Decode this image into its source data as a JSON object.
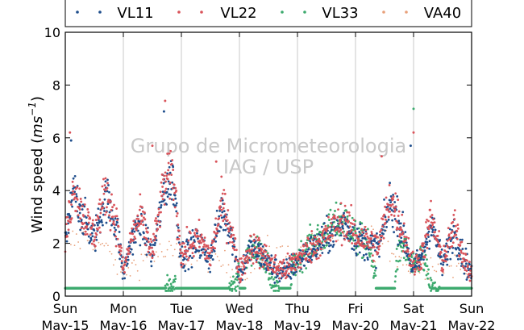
{
  "chart_data": {
    "type": "scatter",
    "title": "",
    "ylabel": "Wind speed (ms⁻¹)",
    "ylabel_main": "Wind speed (",
    "ylabel_unit": "ms",
    "ylabel_exp": "−1",
    "ylabel_close": ")",
    "ylim": [
      0,
      10
    ],
    "yticks": [
      0,
      2,
      4,
      6,
      8,
      10
    ],
    "xlim": [
      "2015-05-17",
      "2015-05-24"
    ],
    "xticks": [
      {
        "day": "Sun",
        "date": "May-15"
      },
      {
        "day": "Mon",
        "date": "May-16"
      },
      {
        "day": "Tue",
        "date": "May-17"
      },
      {
        "day": "Wed",
        "date": "May-18"
      },
      {
        "day": "Thu",
        "date": "May-19"
      },
      {
        "day": "Fri",
        "date": "May-20"
      },
      {
        "day": "Sat",
        "date": "May-21"
      },
      {
        "day": "Sun",
        "date": "May-22"
      }
    ],
    "grid": "vertical",
    "legend_position": "top",
    "watermark": [
      "Grupo de Micrometeorologia",
      "IAG / USP"
    ],
    "series": [
      {
        "name": "VL11",
        "color": "#1f4e8c",
        "marker": "dot",
        "mean_profile_x_day": [
          0.0,
          0.15,
          0.3,
          0.5,
          0.7,
          0.9,
          1.0,
          1.15,
          1.3,
          1.5,
          1.7,
          1.85,
          2.0,
          2.15,
          2.3,
          2.5,
          2.7,
          2.85,
          3.0,
          3.2,
          3.4,
          3.6,
          3.8,
          4.0,
          4.2,
          4.4,
          4.6,
          4.8,
          5.0,
          5.2,
          5.4,
          5.6,
          5.8,
          6.0,
          6.15,
          6.3,
          6.5,
          6.7,
          6.85,
          7.0
        ],
        "mean_profile_y": [
          2.0,
          4.0,
          3.0,
          2.2,
          3.8,
          2.5,
          0.8,
          2.2,
          2.8,
          1.5,
          4.0,
          4.5,
          1.5,
          1.8,
          2.0,
          1.4,
          3.3,
          2.5,
          0.8,
          1.8,
          1.5,
          1.0,
          0.9,
          1.3,
          1.7,
          2.0,
          2.4,
          2.8,
          2.2,
          2.0,
          1.8,
          3.6,
          2.5,
          1.0,
          1.5,
          2.8,
          1.2,
          2.5,
          1.5,
          0.8
        ]
      },
      {
        "name": "VL22",
        "color": "#d9535a",
        "marker": "dot",
        "mean_profile_x_day": [
          0.0,
          0.15,
          0.3,
          0.5,
          0.7,
          0.9,
          1.0,
          1.15,
          1.3,
          1.5,
          1.7,
          1.85,
          2.0,
          2.15,
          2.3,
          2.5,
          2.7,
          2.85,
          3.0,
          3.2,
          3.4,
          3.6,
          3.8,
          4.0,
          4.2,
          4.4,
          4.6,
          4.8,
          5.0,
          5.2,
          5.4,
          5.6,
          5.8,
          6.0,
          6.15,
          6.3,
          6.5,
          6.7,
          6.85,
          7.0
        ],
        "mean_profile_y": [
          2.1,
          4.2,
          3.1,
          2.3,
          4.0,
          2.6,
          0.9,
          2.3,
          3.0,
          1.6,
          4.2,
          4.7,
          1.6,
          1.9,
          2.2,
          1.5,
          3.5,
          2.6,
          0.9,
          1.9,
          1.6,
          1.1,
          1.0,
          1.4,
          1.8,
          2.1,
          2.5,
          2.9,
          2.3,
          2.1,
          1.9,
          3.8,
          2.6,
          1.1,
          1.6,
          3.0,
          1.3,
          2.6,
          1.6,
          0.9
        ]
      },
      {
        "name": "VL33",
        "color": "#3daa6e",
        "marker": "dot",
        "mean_profile_x_day": [
          0.0,
          0.15,
          0.3,
          0.5,
          0.7,
          0.9,
          1.0,
          1.15,
          1.3,
          1.5,
          1.7,
          1.85,
          2.0,
          2.15,
          2.3,
          2.5,
          2.7,
          2.85,
          3.0,
          3.2,
          3.4,
          3.6,
          3.8,
          4.0,
          4.2,
          4.4,
          4.6,
          4.8,
          5.0,
          5.2,
          5.4,
          5.6,
          5.8,
          6.0,
          6.15,
          6.3,
          6.5,
          6.7,
          6.85,
          7.0
        ],
        "mean_profile_y": [
          0.3,
          0.3,
          0.3,
          0.3,
          0.3,
          0.3,
          0.3,
          0.3,
          0.3,
          0.3,
          0.3,
          0.3,
          1.5,
          1.8,
          1.9,
          0.3,
          0.3,
          0.3,
          0.8,
          1.8,
          1.6,
          0.3,
          0.3,
          1.4,
          1.9,
          2.2,
          2.6,
          3.0,
          2.2,
          2.0,
          0.3,
          0.3,
          2.0,
          1.0,
          1.6,
          0.3,
          0.3,
          0.3,
          0.3,
          0.3
        ]
      },
      {
        "name": "VA40",
        "color": "#e8a07a",
        "marker": "dot",
        "mean_profile_x_day": [
          0.0,
          0.5,
          1.0,
          1.5,
          2.0,
          2.5,
          3.0,
          3.5,
          4.0,
          4.5,
          5.0,
          5.5,
          6.0,
          6.5,
          7.0
        ],
        "mean_profile_y": [
          2.0,
          2.3,
          0.9,
          1.6,
          1.6,
          1.5,
          0.9,
          1.7,
          1.4,
          2.2,
          2.3,
          2.0,
          1.1,
          1.3,
          0.9
        ]
      }
    ],
    "flat_segments_VL33_day": [
      [
        0.0,
        1.72
      ],
      [
        1.9,
        2.82
      ],
      [
        3.0,
        3.1
      ],
      [
        3.68,
        3.88
      ],
      [
        5.35,
        5.68
      ],
      [
        6.45,
        7.0
      ]
    ],
    "peaks": [
      {
        "series": "VL22",
        "x_day": 0.08,
        "y": 6.2
      },
      {
        "series": "VL11",
        "x_day": 0.1,
        "y": 5.9
      },
      {
        "series": "VL22",
        "x_day": 1.72,
        "y": 7.4
      },
      {
        "series": "VL11",
        "x_day": 1.7,
        "y": 7.0
      },
      {
        "series": "VL22",
        "x_day": 1.5,
        "y": 5.7
      },
      {
        "series": "VL33",
        "x_day": 6.0,
        "y": 7.1
      },
      {
        "series": "VL22",
        "x_day": 6.0,
        "y": 6.2
      },
      {
        "series": "VL11",
        "x_day": 5.95,
        "y": 5.7
      },
      {
        "series": "VL22",
        "x_day": 2.6,
        "y": 5.1
      },
      {
        "series": "VL22",
        "x_day": 5.45,
        "y": 5.3
      }
    ]
  }
}
